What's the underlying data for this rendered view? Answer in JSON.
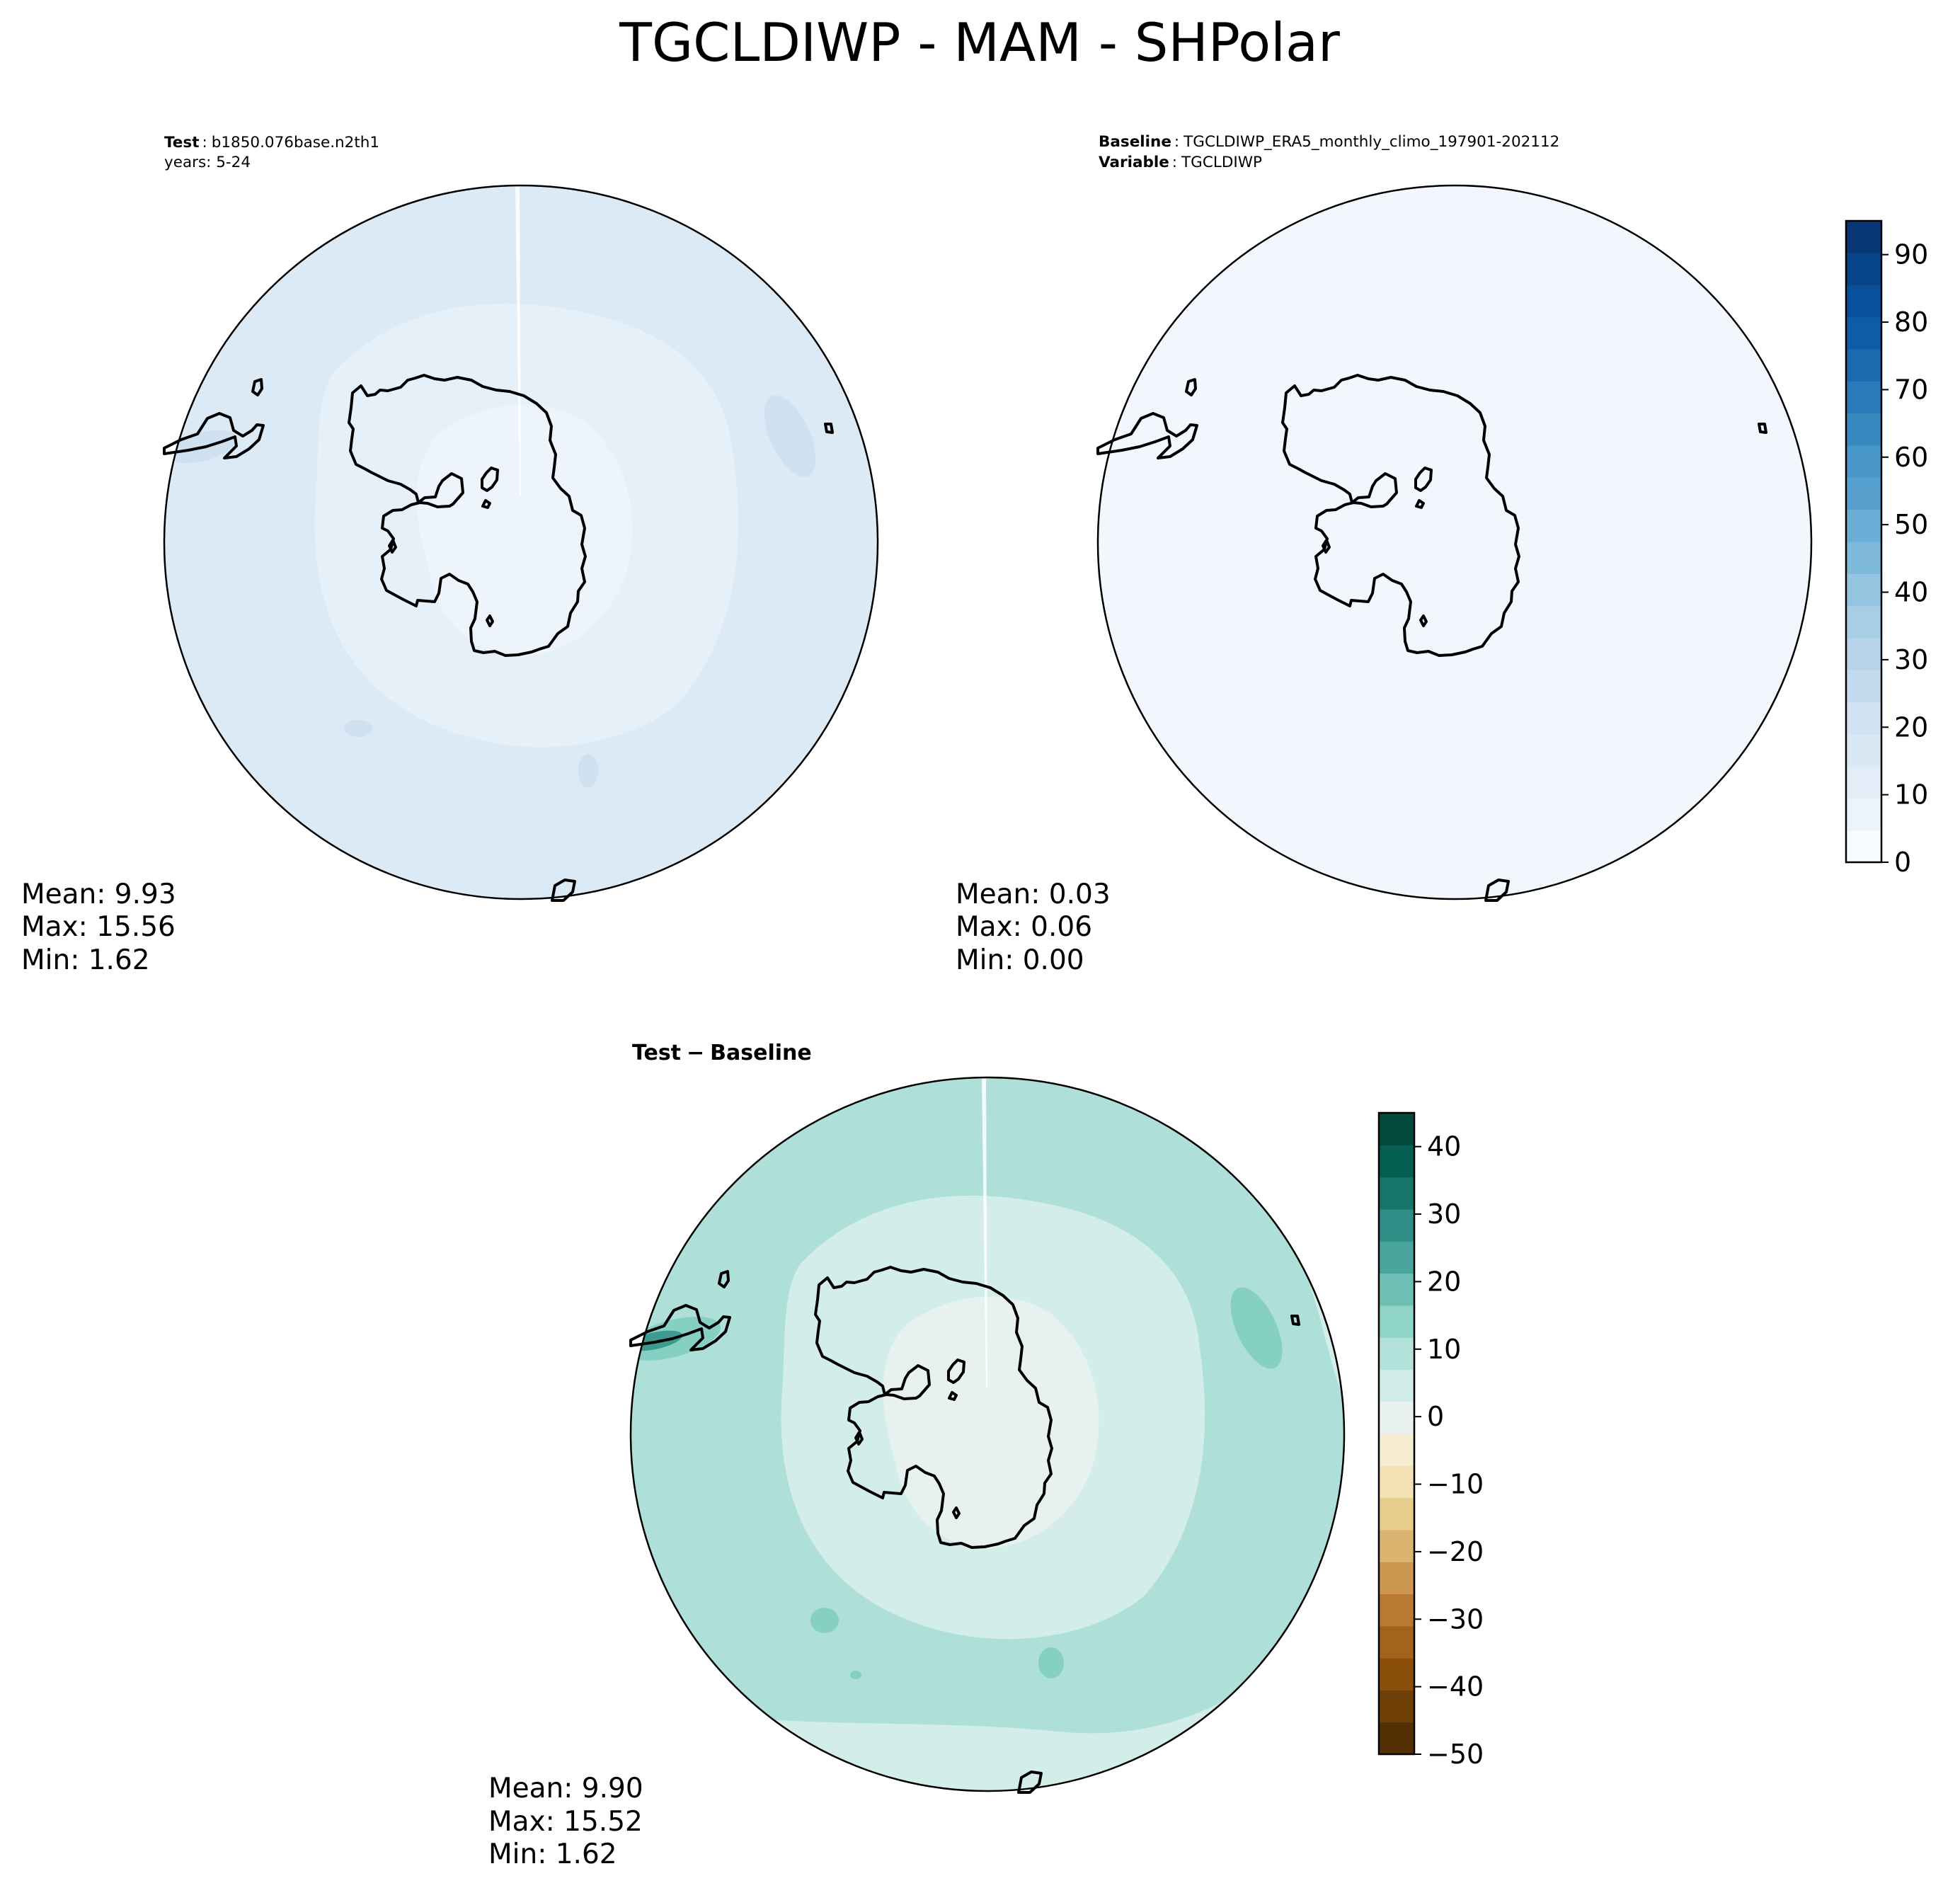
{
  "figure": {
    "title": "TGCLDIWP - MAM - SHPolar"
  },
  "panels": {
    "test": {
      "header_label": "Test",
      "header_value": "b1850.076base.n2th1",
      "years_line": "years: 5-24",
      "stats": {
        "mean": "Mean:  9.93",
        "max": "Max: 15.56",
        "min": "Min:  1.62"
      }
    },
    "baseline": {
      "header_label": "Baseline",
      "header_value": "TGCLDIWP_ERA5_monthly_climo_197901-202112",
      "variable_label": "Variable",
      "variable_value": "TGCLDIWP",
      "stats": {
        "mean": "Mean:  0.03",
        "max": "Max:  0.06",
        "min": "Min:  0.00"
      }
    },
    "difference": {
      "title_left": "Test",
      "title_op": "−",
      "title_right": "Baseline",
      "stats": {
        "mean": "Mean:  9.90",
        "max": "Max: 15.52",
        "min": "Min:  1.62"
      }
    }
  },
  "colorbars": {
    "main": {
      "ticks": [
        "0",
        "10",
        "20",
        "30",
        "40",
        "50",
        "60",
        "70",
        "80",
        "90"
      ],
      "range": [
        0,
        95
      ],
      "colors": [
        "#f7fbff",
        "#ebf3fb",
        "#e2edf8",
        "#d9e8f5",
        "#d0e1f2",
        "#c4daee",
        "#b7d4ea",
        "#a6cee4",
        "#94c4df",
        "#7fb9da",
        "#6aaed6",
        "#58a1cf",
        "#4a98c9",
        "#3989c1",
        "#2a7ab9",
        "#1c6bb0",
        "#0f5ca6",
        "#08509b",
        "#084488",
        "#083674"
      ]
    },
    "diff": {
      "ticks": [
        "40",
        "30",
        "20",
        "10",
        "0",
        "−10",
        "−20",
        "−30",
        "−40",
        "−50"
      ],
      "range": [
        -50,
        45
      ],
      "colors": [
        "#543005",
        "#6f3f08",
        "#8a500b",
        "#a3631b",
        "#b87a32",
        "#cb9650",
        "#dab46e",
        "#e8cd8f",
        "#f2e1b2",
        "#f6ecd2",
        "#e9f1ee",
        "#d1ece7",
        "#b2e2da",
        "#90d4c8",
        "#6cbfb2",
        "#49a59b",
        "#2e8d84",
        "#157569",
        "#045e52",
        "#00493c"
      ]
    }
  },
  "map_colors": {
    "test_ocean": "#dceaf6",
    "test_inner": "#e5f0f9",
    "test_pole": "#edf4fb",
    "test_highlight": "#cfe0f1",
    "baseline_fill": "#f2f7fd",
    "diff_ocean": "#aedfd8",
    "diff_inner": "#d3ede9",
    "diff_pole": "#e7f2f0",
    "diff_highlight": "#86cfc3",
    "diff_strong": "#3c9a8e"
  }
}
